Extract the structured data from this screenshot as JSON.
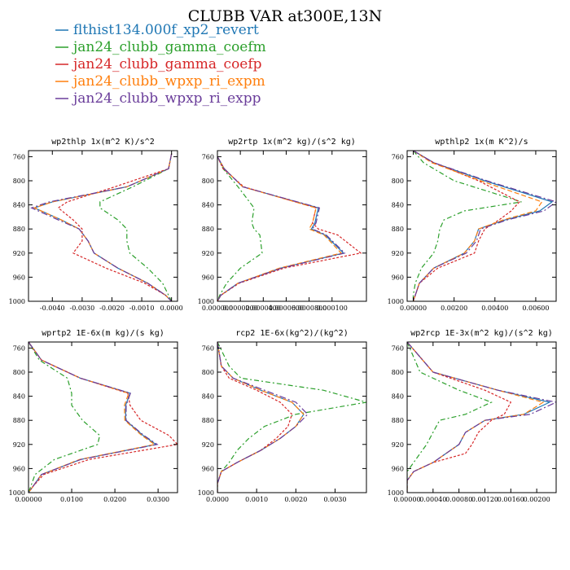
{
  "figure": {
    "title": "CLUBB VAR at300E,13N"
  },
  "legend": [
    {
      "label": "flthist134.000f_xp2_revert",
      "color": "#1f77b4",
      "dash": "0"
    },
    {
      "label": "jan24_clubb_gamma_coefm",
      "color": "#2ca02c",
      "dash": "6,3,2,3"
    },
    {
      "label": "jan24_clubb_gamma_coefp",
      "color": "#d62728",
      "dash": "3,2"
    },
    {
      "label": "jan24_clubb_wpxp_ri_expm",
      "color": "#ff7f0e",
      "dash": "6,3"
    },
    {
      "label": "jan24_clubb_wpxp_ri_expp",
      "color": "#6a3d9a",
      "dash": "8,3,2,3"
    }
  ],
  "chart_data": [
    {
      "type": "line",
      "title": "wp2thlp   1x(m^2 K)/s^2",
      "xlim": [
        -0.0048,
        0.0002
      ],
      "ylim": [
        1000,
        750
      ],
      "xticks": [
        "-0.0040",
        "-0.0030",
        "-0.0020",
        "-0.0010",
        "0.0000"
      ],
      "xtick_values": [
        -0.004,
        -0.003,
        -0.002,
        -0.001,
        0.0
      ],
      "yticks": [
        "760",
        "800",
        "840",
        "880",
        "920",
        "960",
        "1000"
      ],
      "ytick_values": [
        760,
        800,
        840,
        880,
        920,
        960,
        1000
      ],
      "levels": [
        755,
        780,
        810,
        835,
        845,
        865,
        880,
        900,
        920,
        945,
        970,
        990,
        1000
      ],
      "series": [
        {
          "name": "flthist134.000f_xp2_revert",
          "values": [
            0.0,
            -0.0001,
            -0.0015,
            -0.004,
            -0.0046,
            -0.0037,
            -0.0031,
            -0.0028,
            -0.0026,
            -0.0018,
            -0.0008,
            -0.0002,
            0.0
          ]
        },
        {
          "name": "jan24_clubb_gamma_coefm",
          "values": [
            0.0,
            -0.0001,
            -0.0013,
            -0.0024,
            -0.0024,
            -0.0018,
            -0.0015,
            -0.0015,
            -0.0014,
            -0.0008,
            -0.0003,
            -0.0001,
            0.0
          ]
        },
        {
          "name": "jan24_clubb_gamma_coefp",
          "values": [
            0.0,
            -0.0001,
            -0.0019,
            -0.0035,
            -0.0038,
            -0.0033,
            -0.003,
            -0.003,
            -0.0033,
            -0.0022,
            -0.0009,
            -0.0002,
            0.0
          ]
        },
        {
          "name": "jan24_clubb_wpxp_ri_expm",
          "values": [
            0.0,
            -0.0001,
            -0.0015,
            -0.004,
            -0.0046,
            -0.0037,
            -0.0031,
            -0.0028,
            -0.0026,
            -0.0018,
            -0.0008,
            -0.0002,
            0.0
          ]
        },
        {
          "name": "jan24_clubb_wpxp_ri_expp",
          "values": [
            0.0,
            -0.0001,
            -0.0015,
            -0.0041,
            -0.0047,
            -0.0038,
            -0.0031,
            -0.0028,
            -0.0026,
            -0.0018,
            -0.0008,
            -0.0002,
            0.0
          ]
        }
      ]
    },
    {
      "type": "line",
      "title": "wp2rtp  1x(m^2 kg)/(s^2 kg)",
      "xlim": [
        0,
        0.00013
      ],
      "ylim": [
        1000,
        750
      ],
      "xticks": [
        "0.000000",
        "0.0000200",
        "0.0000400",
        "0.0000600",
        "0.0000800",
        "0.000100"
      ],
      "xtick_values": [
        0,
        2e-05,
        4e-05,
        6e-05,
        8e-05,
        0.0001
      ],
      "yticks": [
        "760",
        "800",
        "840",
        "880",
        "920",
        "960",
        "1000"
      ],
      "ytick_values": [
        760,
        800,
        840,
        880,
        920,
        960,
        1000
      ],
      "levels": [
        760,
        780,
        810,
        845,
        870,
        880,
        890,
        920,
        945,
        970,
        990,
        1000
      ],
      "series": [
        {
          "name": "flthist134.000f_xp2_revert",
          "values": [
            0.0,
            6e-06,
            2.2e-05,
            8.8e-05,
            8.5e-05,
            8.2e-05,
            9.4e-05,
            0.00011,
            5.5e-05,
            1.8e-05,
            3e-06,
            0.0
          ]
        },
        {
          "name": "jan24_clubb_gamma_coefm",
          "values": [
            0.0,
            5e-06,
            1.8e-05,
            3.2e-05,
            3e-05,
            3.2e-05,
            3.7e-05,
            3.9e-05,
            2e-05,
            8e-06,
            2e-06,
            0.0
          ]
        },
        {
          "name": "jan24_clubb_gamma_coefp",
          "values": [
            0.0,
            5e-06,
            2.3e-05,
            8.6e-05,
            8.3e-05,
            8.8e-05,
            0.000105,
            0.000125,
            5.8e-05,
            1.9e-05,
            3e-06,
            0.0
          ]
        },
        {
          "name": "jan24_clubb_wpxp_ri_expm",
          "values": [
            0.0,
            6e-06,
            2.2e-05,
            8.6e-05,
            8.3e-05,
            8e-05,
            9.3e-05,
            0.000108,
            5.4e-05,
            1.8e-05,
            3e-06,
            0.0
          ]
        },
        {
          "name": "jan24_clubb_wpxp_ri_expp",
          "values": [
            0.0,
            6e-06,
            2.2e-05,
            8.9e-05,
            8.6e-05,
            8.3e-05,
            9.5e-05,
            0.000111,
            5.6e-05,
            1.8e-05,
            3e-06,
            0.0
          ]
        }
      ]
    },
    {
      "type": "line",
      "title": "wpthlp2  1x(m K^2)/s",
      "xlim": [
        -0.0003,
        0.007
      ],
      "ylim": [
        1000,
        750
      ],
      "xticks": [
        "0.00000",
        "0.00200",
        "0.00400",
        "0.00600"
      ],
      "xtick_values": [
        0,
        0.002,
        0.004,
        0.006
      ],
      "yticks": [
        "760",
        "800",
        "840",
        "880",
        "920",
        "960",
        "1000"
      ],
      "ytick_values": [
        760,
        800,
        840,
        880,
        920,
        960,
        1000
      ],
      "levels": [
        750,
        770,
        800,
        835,
        850,
        865,
        880,
        900,
        920,
        945,
        970,
        990,
        1000
      ],
      "series": [
        {
          "name": "flthist134.000f_xp2_revert",
          "values": [
            0.0,
            0.001,
            0.0035,
            0.0068,
            0.0062,
            0.0045,
            0.0032,
            0.003,
            0.0025,
            0.001,
            0.0003,
            0.0001,
            0.0
          ]
        },
        {
          "name": "jan24_clubb_gamma_coefm",
          "values": [
            0.0,
            0.0005,
            0.002,
            0.0053,
            0.0025,
            0.0015,
            0.0013,
            0.0012,
            0.001,
            0.0004,
            0.0001,
            0.0,
            0.0
          ]
        },
        {
          "name": "jan24_clubb_gamma_coefp",
          "values": [
            0.0,
            0.001,
            0.0032,
            0.0052,
            0.0048,
            0.0042,
            0.0035,
            0.0032,
            0.003,
            0.0012,
            0.0003,
            0.0001,
            0.0
          ]
        },
        {
          "name": "jan24_clubb_wpxp_ri_expm",
          "values": [
            0.0,
            0.0009,
            0.0033,
            0.0063,
            0.006,
            0.0044,
            0.0032,
            0.003,
            0.0025,
            0.001,
            0.0003,
            0.0001,
            0.0
          ]
        },
        {
          "name": "jan24_clubb_wpxp_ri_expp",
          "values": [
            0.0,
            0.001,
            0.0036,
            0.007,
            0.0064,
            0.0046,
            0.0033,
            0.0031,
            0.0026,
            0.001,
            0.0003,
            0.0001,
            0.0
          ]
        }
      ]
    },
    {
      "type": "line",
      "title": "wprtp2  1E-6x(m kg)/(s kg)",
      "xlim": [
        0,
        0.0345
      ],
      "ylim": [
        1000,
        750
      ],
      "xticks": [
        "0.00000",
        "0.0100",
        "0.0200",
        "0.0300"
      ],
      "xtick_values": [
        0,
        0.01,
        0.02,
        0.03
      ],
      "yticks": [
        "760",
        "800",
        "840",
        "880",
        "920",
        "960",
        "1000"
      ],
      "ytick_values": [
        760,
        800,
        840,
        880,
        920,
        960,
        1000
      ],
      "levels": [
        750,
        780,
        810,
        835,
        855,
        880,
        905,
        920,
        945,
        970,
        990,
        1000
      ],
      "series": [
        {
          "name": "flthist134.000f_xp2_revert",
          "values": [
            0.0,
            0.003,
            0.012,
            0.0235,
            0.0225,
            0.0225,
            0.0265,
            0.0295,
            0.012,
            0.003,
            0.001,
            0.0
          ]
        },
        {
          "name": "jan24_clubb_gamma_coefm",
          "values": [
            0.0,
            0.0025,
            0.009,
            0.01,
            0.01,
            0.0125,
            0.0165,
            0.016,
            0.006,
            0.0015,
            0.0005,
            0.0
          ]
        },
        {
          "name": "jan24_clubb_gamma_coefp",
          "values": [
            0.0,
            0.003,
            0.012,
            0.023,
            0.0235,
            0.026,
            0.0325,
            0.0345,
            0.014,
            0.0035,
            0.001,
            0.0
          ]
        },
        {
          "name": "jan24_clubb_wpxp_ri_expm",
          "values": [
            0.0,
            0.003,
            0.012,
            0.0232,
            0.0222,
            0.0223,
            0.0262,
            0.0292,
            0.0118,
            0.003,
            0.001,
            0.0
          ]
        },
        {
          "name": "jan24_clubb_wpxp_ri_expp",
          "values": [
            0.0,
            0.003,
            0.012,
            0.0236,
            0.0226,
            0.0226,
            0.0267,
            0.0298,
            0.0121,
            0.003,
            0.001,
            0.0
          ]
        }
      ]
    },
    {
      "type": "line",
      "title": "rcp2  1E-6x(kg^2)/(kg^2)",
      "xlim": [
        0,
        0.0038
      ],
      "ylim": [
        1000,
        750
      ],
      "xticks": [
        "0.0000",
        "0.0010",
        "0.0020",
        "0.0030"
      ],
      "xtick_values": [
        0,
        0.001,
        0.002,
        0.003
      ],
      "yticks": [
        "760",
        "800",
        "840",
        "880",
        "920",
        "960",
        "1000"
      ],
      "ytick_values": [
        760,
        800,
        840,
        880,
        920,
        960,
        1000
      ],
      "levels": [
        750,
        790,
        810,
        830,
        850,
        870,
        890,
        910,
        930,
        950,
        965,
        985,
        1000
      ],
      "series": [
        {
          "name": "flthist134.000f_xp2_revert",
          "values": [
            0.0,
            0.0001,
            0.0004,
            0.0011,
            0.0019,
            0.0022,
            0.002,
            0.0016,
            0.0011,
            0.0005,
            0.0001,
            0.0,
            0.0
          ]
        },
        {
          "name": "jan24_clubb_gamma_coefm",
          "values": [
            0.0,
            0.0003,
            0.0006,
            0.0027,
            0.0038,
            0.002,
            0.0012,
            0.0008,
            0.0005,
            0.0003,
            0.0001,
            0.0,
            0.0
          ]
        },
        {
          "name": "jan24_clubb_gamma_coefp",
          "values": [
            0.0,
            0.0001,
            0.0003,
            0.001,
            0.0016,
            0.0019,
            0.0018,
            0.0015,
            0.0011,
            0.0005,
            0.0001,
            0.0,
            0.0
          ]
        },
        {
          "name": "jan24_clubb_wpxp_ri_expm",
          "values": [
            0.0,
            0.0001,
            0.0004,
            0.0011,
            0.0019,
            0.0022,
            0.002,
            0.0016,
            0.0011,
            0.0005,
            0.0001,
            0.0,
            0.0
          ]
        },
        {
          "name": "jan24_clubb_wpxp_ri_expp",
          "values": [
            0.0,
            0.0001,
            0.0004,
            0.0012,
            0.002,
            0.0023,
            0.002,
            0.0016,
            0.0011,
            0.0005,
            0.0001,
            0.0,
            0.0
          ]
        }
      ]
    },
    {
      "type": "line",
      "title": "wp2rcp  1E-3x(m^2 kg)/(s^2 kg)",
      "xlim": [
        0,
        0.0023
      ],
      "ylim": [
        1000,
        750
      ],
      "xticks": [
        "0.00000",
        "0.00040",
        "0.00080",
        "0.00120",
        "0.00160",
        "0.00200"
      ],
      "xtick_values": [
        0,
        0.0004,
        0.0008,
        0.0012,
        0.0016,
        0.002
      ],
      "yticks": [
        "760",
        "800",
        "840",
        "880",
        "920",
        "960",
        "1000"
      ],
      "ytick_values": [
        760,
        800,
        840,
        880,
        920,
        960,
        1000
      ],
      "levels": [
        750,
        800,
        830,
        850,
        870,
        880,
        900,
        920,
        935,
        950,
        965,
        980,
        1000
      ],
      "series": [
        {
          "name": "flthist134.000f_xp2_revert",
          "values": [
            0.0,
            0.0004,
            0.0014,
            0.0022,
            0.0018,
            0.0012,
            0.0009,
            0.0008,
            0.0006,
            0.0004,
            0.0001,
            0.0,
            0.0
          ]
        },
        {
          "name": "jan24_clubb_gamma_coefm",
          "values": [
            0.0,
            0.0002,
            0.0008,
            0.0013,
            0.0009,
            0.0005,
            0.0004,
            0.0003,
            0.0002,
            0.0001,
            0.0,
            0.0,
            0.0
          ]
        },
        {
          "name": "jan24_clubb_gamma_coefp",
          "values": [
            0.0,
            0.0004,
            0.0012,
            0.0016,
            0.0015,
            0.0013,
            0.0011,
            0.001,
            0.0009,
            0.0004,
            0.0001,
            0.0,
            0.0
          ]
        },
        {
          "name": "jan24_clubb_wpxp_ri_expm",
          "values": [
            0.0,
            0.0004,
            0.0014,
            0.0021,
            0.0018,
            0.0012,
            0.0009,
            0.0008,
            0.0006,
            0.0004,
            0.0001,
            0.0,
            0.0
          ]
        },
        {
          "name": "jan24_clubb_wpxp_ri_expp",
          "values": [
            0.0,
            0.0004,
            0.0014,
            0.0023,
            0.0019,
            0.0012,
            0.0009,
            0.0008,
            0.0006,
            0.0004,
            0.0001,
            0.0,
            0.0
          ]
        }
      ]
    }
  ]
}
